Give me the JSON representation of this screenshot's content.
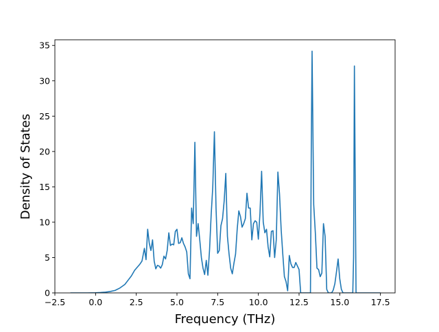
{
  "chart_data": {
    "type": "line",
    "title": "",
    "xlabel": "Frequency (THz)",
    "ylabel": "Density of States",
    "xlim": [
      -2.5,
      18.4
    ],
    "ylim": [
      0,
      35.8
    ],
    "xticks": [
      -2.5,
      0.0,
      2.5,
      5.0,
      7.5,
      10.0,
      12.5,
      15.0,
      17.5
    ],
    "xtick_labels": [
      "−2.5",
      "0.0",
      "2.5",
      "5.0",
      "7.5",
      "10.0",
      "12.5",
      "15.0",
      "17.5"
    ],
    "yticks": [
      0,
      5,
      10,
      15,
      20,
      25,
      30,
      35
    ],
    "ytick_labels": [
      "0",
      "5",
      "10",
      "15",
      "20",
      "25",
      "30",
      "35"
    ],
    "grid": false,
    "series": [
      {
        "color": "#1f77b4",
        "x": [
          -1.55,
          -1.0,
          -0.5,
          0.0,
          0.3,
          0.6,
          0.9,
          1.2,
          1.5,
          1.8,
          2.0,
          2.2,
          2.4,
          2.55,
          2.7,
          2.85,
          3.0,
          3.1,
          3.2,
          3.3,
          3.4,
          3.5,
          3.6,
          3.7,
          3.8,
          3.9,
          4.0,
          4.1,
          4.2,
          4.3,
          4.4,
          4.5,
          4.6,
          4.7,
          4.8,
          4.9,
          5.0,
          5.1,
          5.2,
          5.3,
          5.4,
          5.5,
          5.6,
          5.7,
          5.8,
          5.9,
          6.0,
          6.1,
          6.2,
          6.3,
          6.4,
          6.5,
          6.6,
          6.7,
          6.8,
          6.9,
          7.0,
          7.1,
          7.2,
          7.3,
          7.4,
          7.5,
          7.6,
          7.7,
          7.8,
          7.9,
          8.0,
          8.1,
          8.2,
          8.3,
          8.4,
          8.5,
          8.6,
          8.7,
          8.8,
          8.9,
          9.0,
          9.1,
          9.2,
          9.3,
          9.4,
          9.5,
          9.6,
          9.7,
          9.8,
          9.9,
          10.0,
          10.1,
          10.2,
          10.3,
          10.4,
          10.5,
          10.6,
          10.7,
          10.8,
          10.9,
          11.0,
          11.1,
          11.2,
          11.3,
          11.4,
          11.5,
          11.6,
          11.7,
          11.8,
          11.9,
          12.0,
          12.1,
          12.2,
          12.3,
          12.4,
          12.5,
          12.6,
          12.7,
          12.8,
          12.9,
          13.0,
          13.1,
          13.2,
          13.25,
          13.3,
          13.4,
          13.5,
          13.6,
          13.7,
          13.8,
          13.9,
          14.0,
          14.1,
          14.2,
          14.3,
          14.4,
          14.5,
          14.6,
          14.7,
          14.8,
          14.9,
          15.0,
          15.1,
          15.2,
          15.3,
          15.4,
          15.5,
          15.6,
          15.7,
          15.8,
          15.85,
          15.9,
          16.0,
          16.1,
          16.5,
          17.0,
          17.5
        ],
        "y": [
          0.0,
          0.0,
          0.0,
          0.02,
          0.05,
          0.1,
          0.2,
          0.35,
          0.7,
          1.2,
          1.8,
          2.4,
          3.2,
          3.6,
          4.0,
          4.5,
          6.3,
          4.7,
          9.0,
          7.0,
          6.0,
          7.5,
          4.5,
          3.4,
          3.9,
          3.8,
          3.5,
          4.0,
          5.2,
          4.8,
          6.0,
          8.5,
          6.7,
          6.9,
          6.8,
          8.7,
          9.0,
          7.0,
          7.1,
          7.8,
          7.0,
          6.5,
          5.8,
          2.7,
          2.0,
          12.0,
          9.8,
          21.3,
          8.0,
          9.8,
          7.5,
          5.0,
          3.5,
          2.6,
          4.6,
          2.5,
          6.0,
          11.0,
          15.0,
          22.8,
          12.0,
          5.6,
          6.0,
          9.5,
          10.5,
          13.0,
          16.9,
          8.0,
          5.5,
          3.5,
          2.7,
          4.2,
          5.5,
          9.0,
          11.6,
          10.8,
          9.3,
          9.8,
          10.5,
          14.1,
          12.0,
          12.0,
          7.5,
          9.8,
          10.2,
          10.0,
          7.6,
          11.3,
          17.2,
          10.0,
          8.5,
          9.0,
          6.5,
          5.1,
          8.7,
          8.8,
          5.0,
          7.5,
          17.1,
          14.0,
          9.0,
          5.5,
          2.3,
          1.6,
          0.3,
          5.3,
          4.1,
          3.6,
          3.6,
          4.3,
          3.8,
          3.3,
          0.0,
          0.0,
          0.0,
          0.0,
          0.0,
          0.0,
          0.0,
          20.0,
          34.2,
          12.5,
          8.5,
          3.5,
          3.3,
          2.3,
          2.8,
          9.8,
          8.0,
          0.5,
          0.0,
          0.0,
          0.0,
          0.4,
          1.3,
          3.0,
          4.8,
          2.0,
          0.5,
          0.0,
          0.0,
          0.0,
          0.0,
          0.0,
          0.0,
          0.0,
          5.0,
          32.1,
          0.0,
          0.0,
          0.0,
          0.0,
          0.0
        ]
      }
    ]
  }
}
